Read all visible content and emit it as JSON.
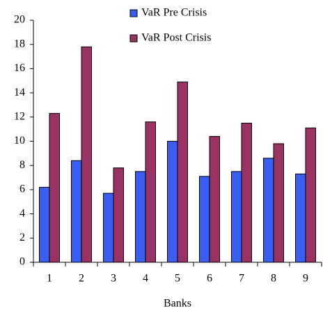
{
  "chart_data": {
    "type": "bar",
    "x_label": "Banks",
    "categories": [
      "1",
      "2",
      "3",
      "4",
      "5",
      "6",
      "7",
      "8",
      "9"
    ],
    "series": [
      {
        "name": "VaR Pre Crisis",
        "color": "#3a5ef0",
        "values": [
          6.2,
          8.4,
          5.7,
          7.5,
          10.0,
          7.1,
          7.5,
          8.6,
          7.3
        ]
      },
      {
        "name": "VaR Post Crisis",
        "color": "#993366",
        "values": [
          12.3,
          17.8,
          7.8,
          11.6,
          14.9,
          10.4,
          11.5,
          9.8,
          11.1
        ]
      }
    ],
    "ylim": [
      0,
      20
    ],
    "yticks": [
      0,
      2,
      4,
      6,
      8,
      10,
      12,
      14,
      16,
      18,
      20
    ],
    "grid": false,
    "legend": "top"
  }
}
